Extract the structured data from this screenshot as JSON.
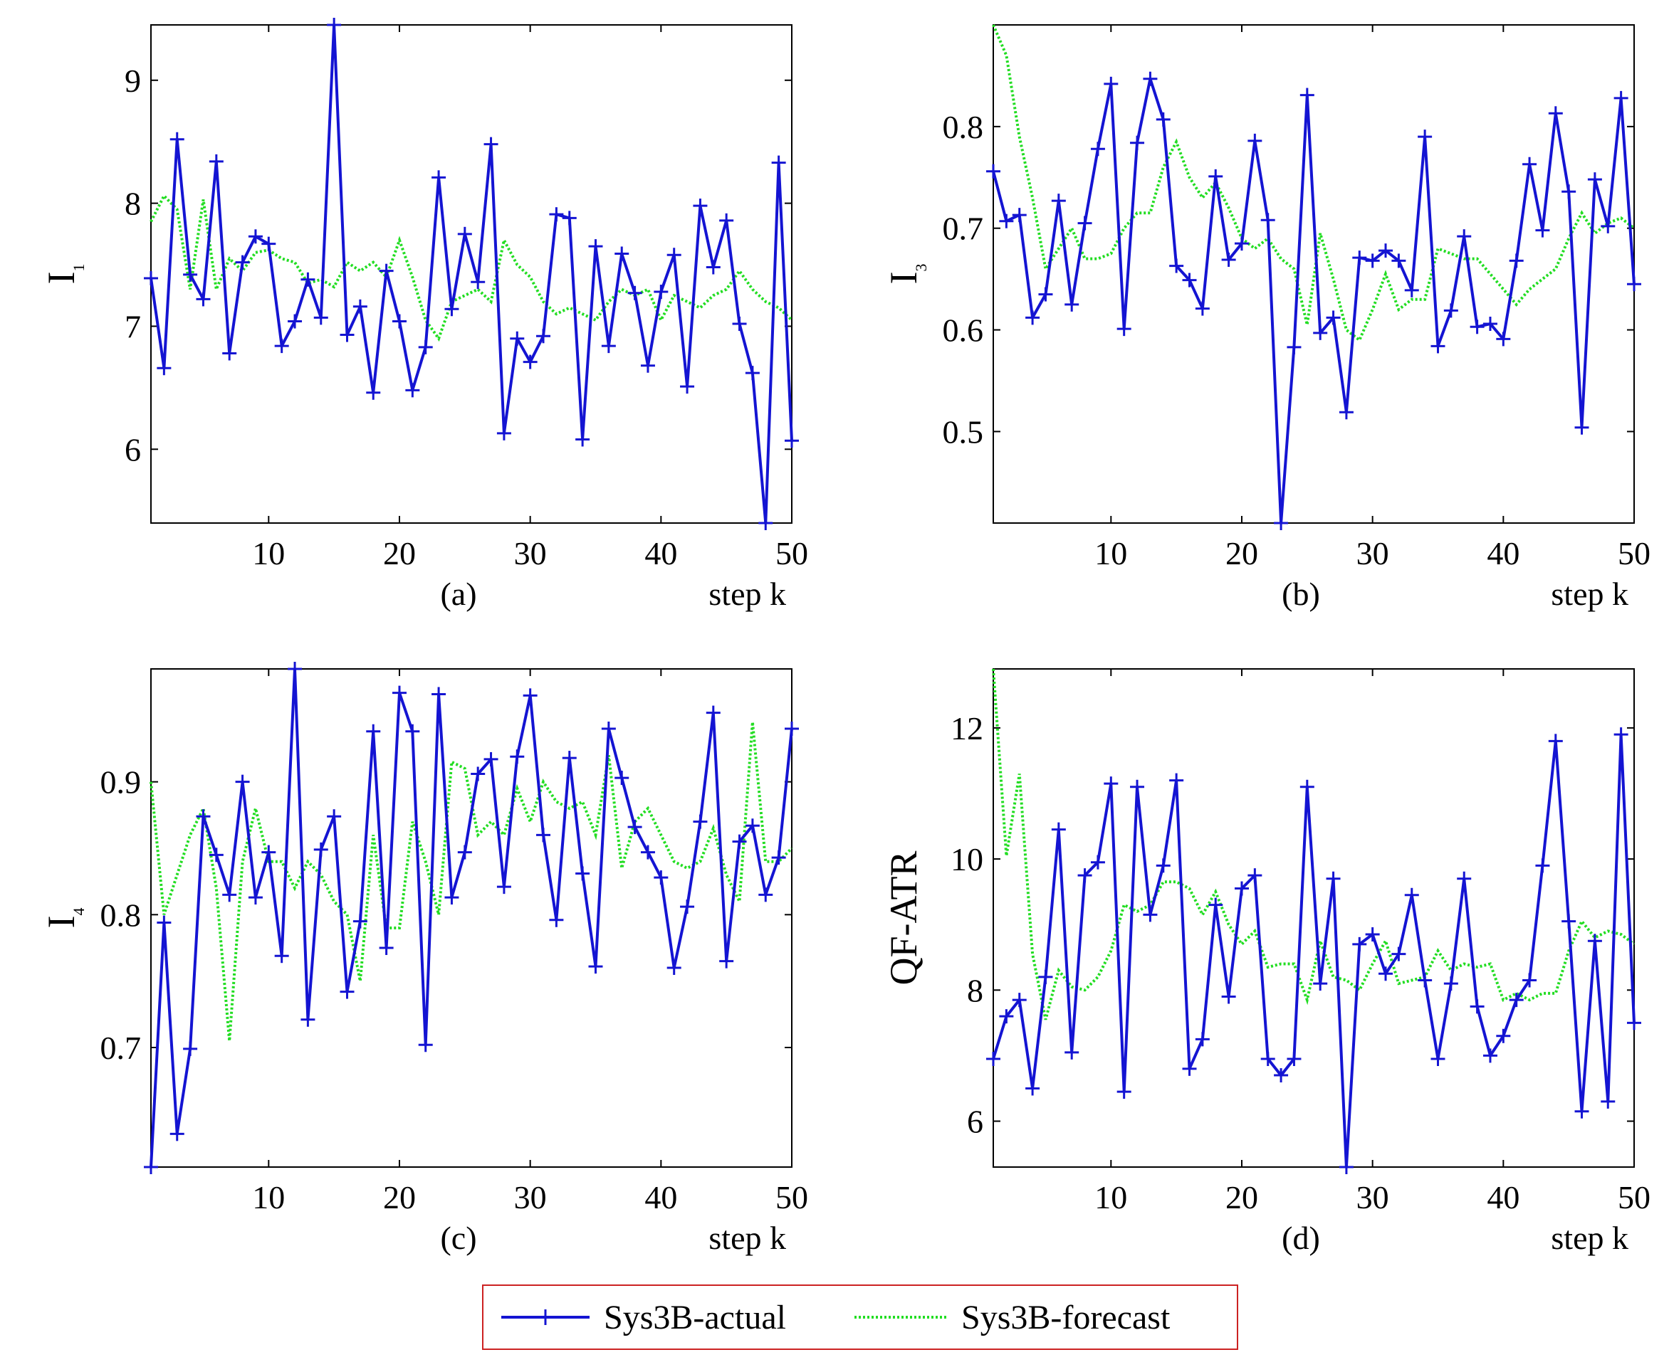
{
  "legend": {
    "actual_label": "Sys3B-actual",
    "forecast_label": "Sys3B-forecast"
  },
  "colors": {
    "actual": "#1414d2",
    "forecast": "#22dd22",
    "legend_border": "#cc2222",
    "axis": "#000000"
  },
  "chart_data": [
    {
      "id": "a",
      "type": "line",
      "caption": "(a)",
      "xlabel": "step k",
      "ylabel_main": "I",
      "ylabel_sub": "1",
      "xlim": [
        1,
        50
      ],
      "ylim": [
        5.4,
        9.45
      ],
      "xticks": [
        10,
        20,
        30,
        40,
        50
      ],
      "yticks": [
        6,
        7,
        8,
        9
      ],
      "ytick_labels": [
        "6",
        "7",
        "8",
        "9"
      ],
      "x": [
        1,
        2,
        3,
        4,
        5,
        6,
        7,
        8,
        9,
        10,
        11,
        12,
        13,
        14,
        15,
        16,
        17,
        18,
        19,
        20,
        21,
        22,
        23,
        24,
        25,
        26,
        27,
        28,
        29,
        30,
        31,
        32,
        33,
        34,
        35,
        36,
        37,
        38,
        39,
        40,
        41,
        42,
        43,
        44,
        45,
        46,
        47,
        48,
        49,
        50
      ],
      "series": [
        {
          "name": "Sys3B-actual",
          "values": [
            7.39,
            6.66,
            8.52,
            7.42,
            7.22,
            8.34,
            6.78,
            7.52,
            7.73,
            7.67,
            6.84,
            7.04,
            7.38,
            7.07,
            9.45,
            6.93,
            7.16,
            6.46,
            7.45,
            7.04,
            6.48,
            6.83,
            8.21,
            7.14,
            7.75,
            7.36,
            8.48,
            6.13,
            6.9,
            6.71,
            6.92,
            7.91,
            7.88,
            6.08,
            7.65,
            6.84,
            7.59,
            7.27,
            6.68,
            7.28,
            7.58,
            6.51,
            7.98,
            7.48,
            7.86,
            7.02,
            6.62,
            5.4,
            8.33,
            6.07
          ]
        },
        {
          "name": "Sys3B-forecast",
          "values": [
            7.85,
            8.06,
            7.95,
            7.3,
            8.03,
            7.3,
            7.55,
            7.45,
            7.6,
            7.62,
            7.55,
            7.52,
            7.35,
            7.38,
            7.32,
            7.52,
            7.45,
            7.52,
            7.4,
            7.7,
            7.4,
            7.05,
            6.9,
            7.2,
            7.25,
            7.3,
            7.2,
            7.7,
            7.5,
            7.4,
            7.2,
            7.1,
            7.15,
            7.1,
            7.05,
            7.2,
            7.3,
            7.25,
            7.3,
            7.05,
            7.25,
            7.2,
            7.15,
            7.25,
            7.3,
            7.45,
            7.3,
            7.2,
            7.15,
            7.05
          ]
        }
      ]
    },
    {
      "id": "b",
      "type": "line",
      "caption": "(b)",
      "xlabel": "step k",
      "ylabel_main": "I",
      "ylabel_sub": "3",
      "xlim": [
        1,
        50
      ],
      "ylim": [
        0.41,
        0.9
      ],
      "xticks": [
        10,
        20,
        30,
        40,
        50
      ],
      "yticks": [
        0.5,
        0.6,
        0.7,
        0.8
      ],
      "ytick_labels": [
        "0.5",
        "0.6",
        "0.7",
        "0.8"
      ],
      "x": [
        1,
        2,
        3,
        4,
        5,
        6,
        7,
        8,
        9,
        10,
        11,
        12,
        13,
        14,
        15,
        16,
        17,
        18,
        19,
        20,
        21,
        22,
        23,
        24,
        25,
        26,
        27,
        28,
        29,
        30,
        31,
        32,
        33,
        34,
        35,
        36,
        37,
        38,
        39,
        40,
        41,
        42,
        43,
        44,
        45,
        46,
        47,
        48,
        49,
        50
      ],
      "series": [
        {
          "name": "Sys3B-actual",
          "values": [
            0.756,
            0.707,
            0.713,
            0.612,
            0.635,
            0.727,
            0.625,
            0.705,
            0.778,
            0.842,
            0.601,
            0.784,
            0.847,
            0.807,
            0.663,
            0.649,
            0.621,
            0.751,
            0.669,
            0.685,
            0.786,
            0.708,
            0.41,
            0.583,
            0.831,
            0.597,
            0.612,
            0.519,
            0.671,
            0.668,
            0.678,
            0.668,
            0.639,
            0.79,
            0.584,
            0.619,
            0.692,
            0.603,
            0.606,
            0.591,
            0.668,
            0.763,
            0.698,
            0.813,
            0.736,
            0.504,
            0.748,
            0.702,
            0.828,
            0.645
          ]
        },
        {
          "name": "Sys3B-forecast",
          "values": [
            0.9,
            0.87,
            0.79,
            0.73,
            0.66,
            0.68,
            0.7,
            0.67,
            0.67,
            0.675,
            0.7,
            0.715,
            0.715,
            0.76,
            0.785,
            0.75,
            0.73,
            0.745,
            0.72,
            0.69,
            0.68,
            0.69,
            0.67,
            0.66,
            0.605,
            0.695,
            0.65,
            0.6,
            0.59,
            0.62,
            0.655,
            0.62,
            0.63,
            0.63,
            0.68,
            0.675,
            0.67,
            0.67,
            0.655,
            0.64,
            0.625,
            0.64,
            0.65,
            0.66,
            0.69,
            0.715,
            0.695,
            0.705,
            0.71,
            0.7
          ]
        }
      ]
    },
    {
      "id": "c",
      "type": "line",
      "caption": "(c)",
      "xlabel": "step k",
      "ylabel_main": "I",
      "ylabel_sub": "4",
      "xlim": [
        1,
        50
      ],
      "ylim": [
        0.61,
        0.985
      ],
      "xticks": [
        10,
        20,
        30,
        40,
        50
      ],
      "yticks": [
        0.7,
        0.8,
        0.9
      ],
      "ytick_labels": [
        "0.7",
        "0.8",
        "0.9"
      ],
      "x": [
        1,
        2,
        3,
        4,
        5,
        6,
        7,
        8,
        9,
        10,
        11,
        12,
        13,
        14,
        15,
        16,
        17,
        18,
        19,
        20,
        21,
        22,
        23,
        24,
        25,
        26,
        27,
        28,
        29,
        30,
        31,
        32,
        33,
        34,
        35,
        36,
        37,
        38,
        39,
        40,
        41,
        42,
        43,
        44,
        45,
        46,
        47,
        48,
        49,
        50
      ],
      "series": [
        {
          "name": "Sys3B-actual",
          "values": [
            0.61,
            0.794,
            0.635,
            0.699,
            0.874,
            0.845,
            0.815,
            0.9,
            0.813,
            0.847,
            0.769,
            0.985,
            0.721,
            0.849,
            0.874,
            0.742,
            0.795,
            0.938,
            0.775,
            0.967,
            0.938,
            0.702,
            0.966,
            0.813,
            0.847,
            0.906,
            0.917,
            0.821,
            0.919,
            0.965,
            0.86,
            0.796,
            0.918,
            0.831,
            0.761,
            0.94,
            0.903,
            0.866,
            0.847,
            0.828,
            0.76,
            0.806,
            0.87,
            0.952,
            0.765,
            0.855,
            0.867,
            0.815,
            0.843,
            0.94
          ]
        },
        {
          "name": "Sys3B-forecast",
          "values": [
            0.9,
            0.8,
            0.83,
            0.86,
            0.88,
            0.82,
            0.705,
            0.84,
            0.88,
            0.84,
            0.84,
            0.82,
            0.84,
            0.83,
            0.81,
            0.8,
            0.75,
            0.86,
            0.79,
            0.79,
            0.87,
            0.84,
            0.8,
            0.915,
            0.91,
            0.86,
            0.87,
            0.86,
            0.895,
            0.87,
            0.9,
            0.885,
            0.88,
            0.885,
            0.86,
            0.92,
            0.835,
            0.87,
            0.88,
            0.86,
            0.84,
            0.835,
            0.84,
            0.865,
            0.83,
            0.81,
            0.945,
            0.84,
            0.84,
            0.85
          ]
        }
      ]
    },
    {
      "id": "d",
      "type": "line",
      "caption": "(d)",
      "xlabel": "step k",
      "ylabel_main": "QF-ATR",
      "ylabel_sub": "",
      "xlim": [
        1,
        50
      ],
      "ylim": [
        5.3,
        12.9
      ],
      "xticks": [
        10,
        20,
        30,
        40,
        50
      ],
      "yticks": [
        6,
        8,
        10,
        12
      ],
      "ytick_labels": [
        "6",
        "8",
        "10",
        "12"
      ],
      "x": [
        1,
        2,
        3,
        4,
        5,
        6,
        7,
        8,
        9,
        10,
        11,
        12,
        13,
        14,
        15,
        16,
        17,
        18,
        19,
        20,
        21,
        22,
        23,
        24,
        25,
        26,
        27,
        28,
        29,
        30,
        31,
        32,
        33,
        34,
        35,
        36,
        37,
        38,
        39,
        40,
        41,
        42,
        43,
        44,
        45,
        46,
        47,
        48,
        49,
        50
      ],
      "series": [
        {
          "name": "Sys3B-actual",
          "values": [
            6.95,
            7.6,
            7.85,
            6.5,
            8.2,
            10.45,
            7.05,
            9.75,
            9.95,
            11.15,
            6.45,
            11.1,
            9.15,
            9.9,
            11.2,
            6.8,
            7.25,
            9.3,
            7.9,
            9.55,
            9.75,
            6.95,
            6.7,
            6.95,
            11.1,
            8.1,
            9.7,
            5.3,
            8.7,
            8.85,
            8.25,
            8.55,
            9.45,
            8.15,
            6.95,
            8.1,
            9.7,
            7.75,
            7.0,
            7.3,
            7.85,
            8.15,
            9.9,
            11.8,
            9.05,
            6.15,
            8.75,
            6.3,
            11.9,
            7.5
          ]
        },
        {
          "name": "Sys3B-forecast",
          "values": [
            12.9,
            10.05,
            11.3,
            8.55,
            7.55,
            8.3,
            8.05,
            8.0,
            8.2,
            8.6,
            9.3,
            9.2,
            9.3,
            9.65,
            9.65,
            9.55,
            9.15,
            9.5,
            9.0,
            8.7,
            8.9,
            8.35,
            8.4,
            8.4,
            7.85,
            8.75,
            8.2,
            8.15,
            8.0,
            8.4,
            8.75,
            8.1,
            8.15,
            8.2,
            8.6,
            8.3,
            8.4,
            8.35,
            8.4,
            7.85,
            7.95,
            7.85,
            7.95,
            7.95,
            8.6,
            9.05,
            8.8,
            8.9,
            8.85,
            8.7
          ]
        }
      ]
    }
  ]
}
